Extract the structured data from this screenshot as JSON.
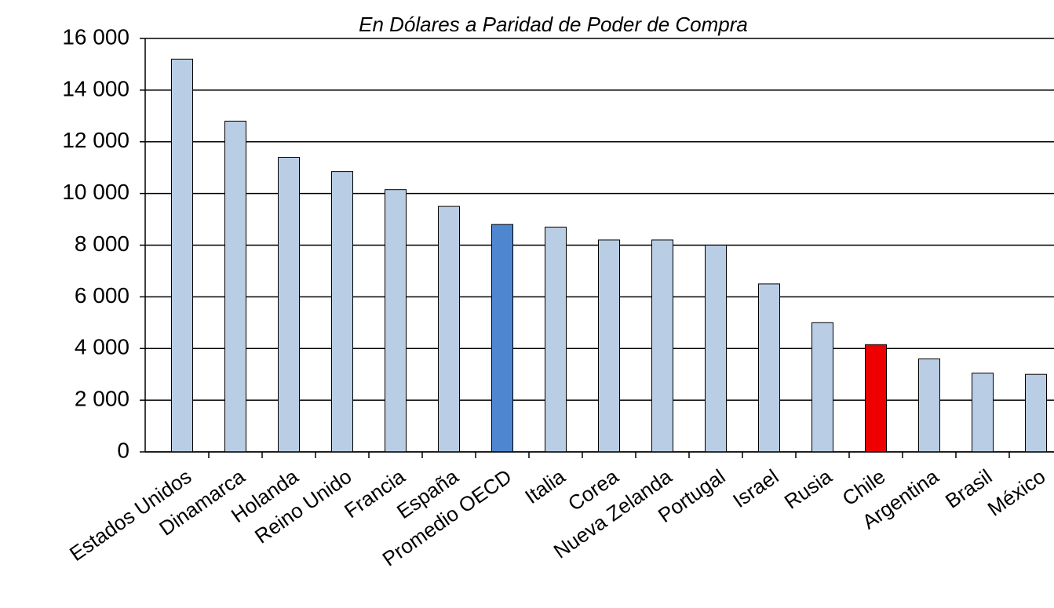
{
  "chart_data": {
    "type": "bar",
    "title": "En Dólares a Paridad de Poder de Compra",
    "categories": [
      "Estados Unidos",
      "Dinamarca",
      "Holanda",
      "Reino Unido",
      "Francia",
      "España",
      "Promedio OECD",
      "Italia",
      "Corea",
      "Nueva Zelanda",
      "Portugal",
      "Israel",
      "Rusia",
      "Chile",
      "Argentina",
      "Brasil",
      "México"
    ],
    "values": [
      15200,
      12800,
      11400,
      10850,
      10150,
      9500,
      8800,
      8700,
      8200,
      8200,
      8000,
      6500,
      5000,
      4150,
      3600,
      3050,
      3000
    ],
    "colors": [
      "#b9cde5",
      "#b9cde5",
      "#b9cde5",
      "#b9cde5",
      "#b9cde5",
      "#b9cde5",
      "#4f86d0",
      "#b9cde5",
      "#b9cde5",
      "#b9cde5",
      "#b9cde5",
      "#b9cde5",
      "#b9cde5",
      "#ee0000",
      "#b9cde5",
      "#b9cde5",
      "#b9cde5"
    ],
    "ylim": [
      0,
      16000
    ],
    "yticks": [
      0,
      {
        "value": 2000,
        "label": "2 000"
      },
      {
        "value": 4000,
        "label": "4 000"
      },
      {
        "value": 6000,
        "label": "6 000"
      },
      {
        "value": 8000,
        "label": "8 000"
      },
      {
        "value": 10000,
        "label": "10 000"
      },
      {
        "value": 12000,
        "label": "12 000"
      },
      {
        "value": 14000,
        "label": "14 000"
      },
      {
        "value": 16000,
        "label": "16 000"
      }
    ],
    "grid": true
  }
}
